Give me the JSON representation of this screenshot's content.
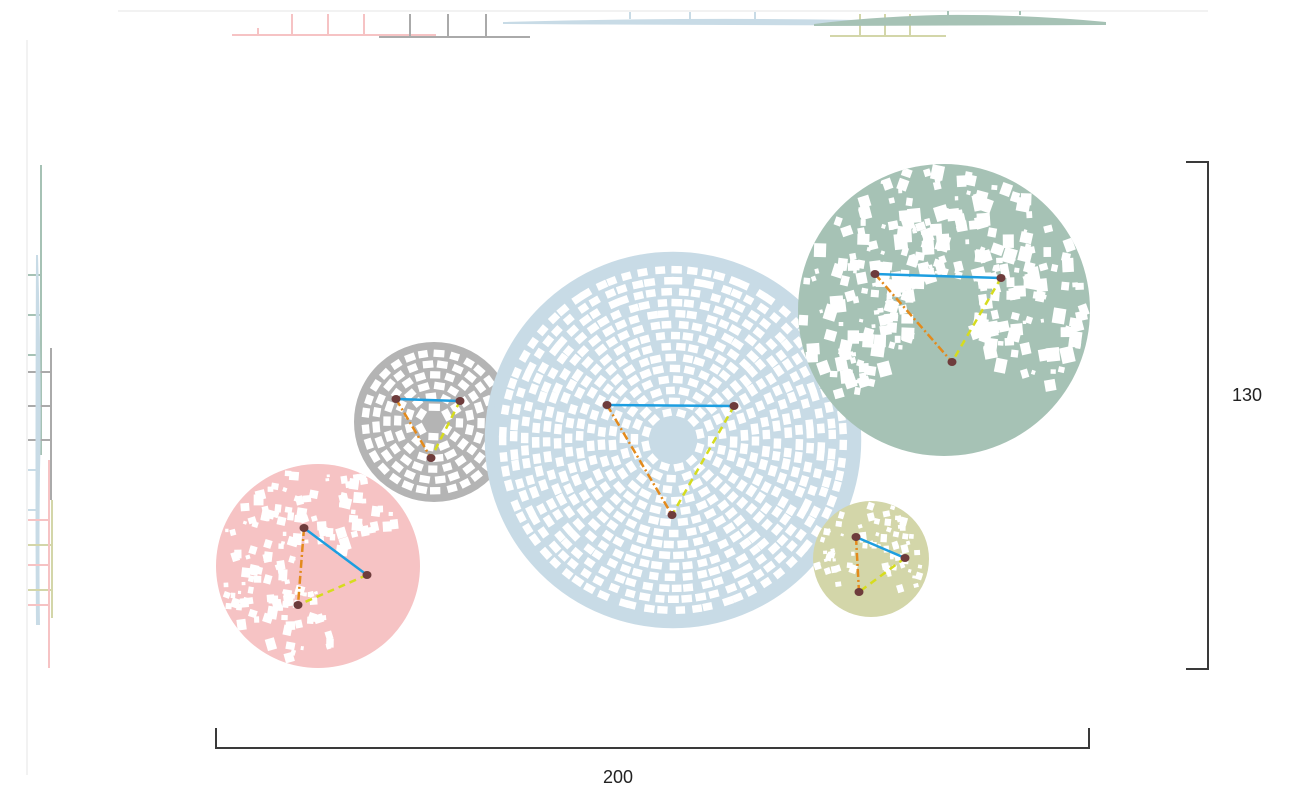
{
  "scale": {
    "width_label": "200",
    "height_label": "130",
    "bracket_color": "#3a3a3a"
  },
  "edge_colors": {
    "solid": "#1d9ee0",
    "dashdot": "#e38a1c",
    "dashed": "#d6dc1e",
    "node": "#6e3c3c"
  },
  "disks": [
    {
      "id": "pink",
      "color": "#f6c3c4",
      "style": "mosaic",
      "density": 0.55,
      "seed": 11
    },
    {
      "id": "gray",
      "color": "#b4b4b4",
      "style": "veins",
      "density": 0.0,
      "seed": 23
    },
    {
      "id": "blue",
      "color": "#c8dbe6",
      "style": "veins",
      "density": 0.0,
      "seed": 37
    },
    {
      "id": "green",
      "color": "#a6c2b5",
      "style": "mosaic",
      "density": 0.35,
      "seed": 51
    },
    {
      "id": "olive",
      "color": "#d3d6a9",
      "style": "mosaic",
      "density": 0.6,
      "seed": 67
    }
  ]
}
